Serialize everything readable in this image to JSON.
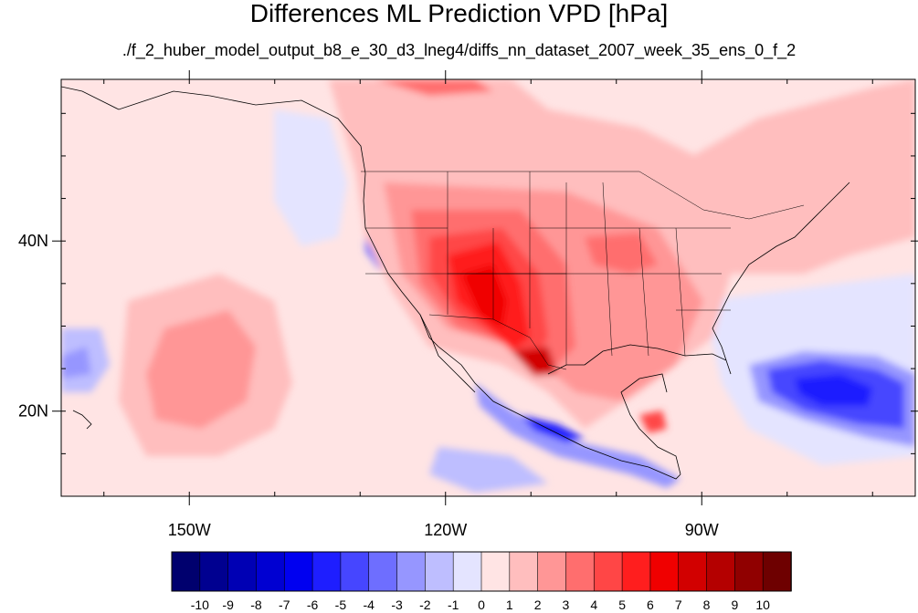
{
  "title": "Differences ML Prediction VPD [hPa]",
  "subtitle": "./f_2_huber_model_output_b8_e_30_d3_lneg4/diffs_nn_dataset_2007_week_35_ens_0_f_2",
  "map": {
    "lon_range": [
      -165,
      -65
    ],
    "lat_range": [
      10,
      59
    ],
    "lat_labels": [
      {
        "value": 40,
        "text": "40N"
      },
      {
        "value": 20,
        "text": "20N"
      }
    ],
    "lon_labels": [
      {
        "value": -150,
        "text": "150W"
      },
      {
        "value": -120,
        "text": "120W"
      },
      {
        "value": -90,
        "text": "90W"
      }
    ]
  },
  "colorbar": {
    "labels": [
      "-10",
      "-9",
      "-8",
      "-7",
      "-6",
      "-5",
      "-4",
      "-3",
      "-2",
      "-1",
      "0",
      "1",
      "2",
      "3",
      "4",
      "5",
      "6",
      "7",
      "8",
      "9",
      "10"
    ],
    "colors": [
      "#00006e",
      "#000090",
      "#0000b4",
      "#0000d2",
      "#0000f0",
      "#1e1eff",
      "#4646ff",
      "#6e6eff",
      "#9696ff",
      "#bebeff",
      "#e4e4ff",
      "#ffe4e4",
      "#ffbebe",
      "#ff9696",
      "#ff6e6e",
      "#ff4646",
      "#ff1e1e",
      "#f00000",
      "#d20000",
      "#b40000",
      "#900000",
      "#6e0000"
    ]
  }
}
